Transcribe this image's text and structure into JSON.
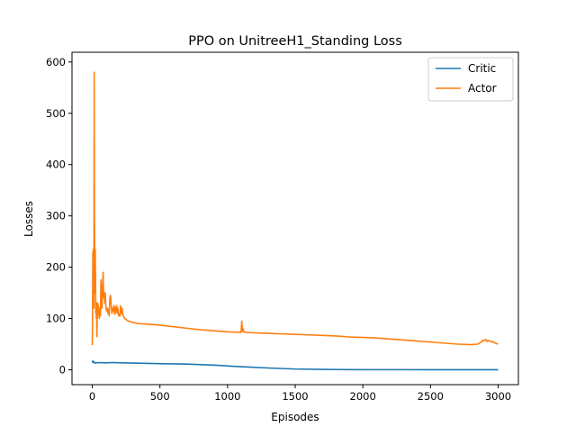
{
  "chart_data": {
    "type": "line",
    "title": "PPO on UnitreeH1_Standing Loss",
    "xlabel": "Episodes",
    "ylabel": "Losses",
    "xlim": [
      -150,
      3150
    ],
    "ylim": [
      -29,
      619
    ],
    "xticks": [
      0,
      500,
      1000,
      1500,
      2000,
      2500,
      3000
    ],
    "yticks": [
      0,
      100,
      200,
      300,
      400,
      500,
      600
    ],
    "grid": false,
    "legend": "top-right",
    "series": [
      {
        "name": "Critic",
        "color": "#1f77b4",
        "x": [
          0,
          5,
          10,
          20,
          40,
          100,
          150,
          300,
          500,
          700,
          900,
          1100,
          1300,
          1500,
          1700,
          1900,
          2100,
          2300,
          2500,
          2700,
          2900,
          3000
        ],
        "y": [
          18,
          14,
          16,
          13,
          14,
          13.5,
          14,
          13,
          12,
          11,
          9,
          6,
          3.5,
          1.5,
          0.8,
          0.3,
          0.2,
          0.2,
          0.1,
          0.1,
          0.1,
          0.1
        ]
      },
      {
        "name": "Actor",
        "color": "#ff7f0e",
        "x": [
          0,
          2,
          4,
          6,
          8,
          10,
          12,
          14,
          16,
          18,
          20,
          22,
          24,
          26,
          28,
          30,
          32,
          34,
          36,
          40,
          44,
          48,
          52,
          56,
          60,
          64,
          68,
          72,
          76,
          80,
          84,
          88,
          92,
          96,
          100,
          105,
          110,
          115,
          120,
          125,
          130,
          135,
          140,
          145,
          150,
          155,
          160,
          165,
          170,
          175,
          180,
          185,
          190,
          195,
          200,
          205,
          210,
          215,
          220,
          225,
          230,
          240,
          260,
          280,
          300,
          350,
          400,
          500,
          600,
          700,
          800,
          900,
          1000,
          1100,
          1105,
          1110,
          1115,
          1120,
          1130,
          1200,
          1300,
          1400,
          1500,
          1600,
          1700,
          1800,
          1900,
          2000,
          2100,
          2200,
          2300,
          2400,
          2500,
          2600,
          2700,
          2800,
          2850,
          2870,
          2880,
          2890,
          2900,
          2910,
          2920,
          2930,
          2940,
          2950,
          2960,
          2970,
          2980,
          2990,
          3000
        ],
        "y": [
          48,
          110,
          230,
          200,
          235,
          160,
          120,
          580,
          300,
          220,
          150,
          235,
          180,
          110,
          125,
          100,
          130,
          65,
          95,
          130,
          125,
          110,
          100,
          120,
          105,
          175,
          150,
          120,
          160,
          190,
          140,
          150,
          130,
          150,
          125,
          115,
          120,
          110,
          118,
          105,
          140,
          145,
          125,
          110,
          120,
          115,
          125,
          108,
          122,
          112,
          125,
          110,
          120,
          105,
          108,
          105,
          125,
          110,
          120,
          108,
          105,
          100,
          96,
          94,
          92,
          90,
          89,
          87,
          84,
          81,
          78,
          76,
          74,
          73,
          95,
          75,
          80,
          74,
          73,
          72,
          71,
          70,
          69,
          68,
          67,
          66,
          64,
          63,
          62,
          60,
          58,
          56,
          54,
          52,
          50,
          49,
          50,
          53,
          55,
          58,
          57,
          59,
          55,
          57,
          56,
          54,
          55,
          53,
          52,
          51,
          50
        ]
      }
    ]
  }
}
